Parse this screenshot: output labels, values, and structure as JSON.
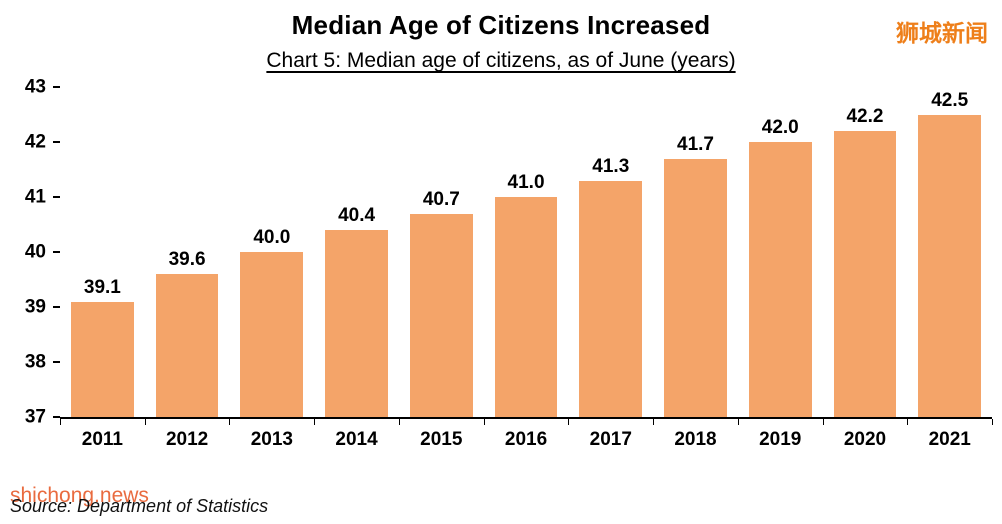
{
  "header": {
    "title": "Median Age of Citizens Increased",
    "subtitle": "Chart 5: Median age of citizens, as of June (years)"
  },
  "watermarks": {
    "top_right": "狮城新闻",
    "bottom_left": "shichong.news"
  },
  "footer": {
    "source": "Source: Department of Statistics"
  },
  "chart_data": {
    "type": "bar",
    "title": "Median Age of Citizens Increased",
    "subtitle": "Chart 5: Median age of citizens, as of June (years)",
    "categories": [
      "2011",
      "2012",
      "2013",
      "2014",
      "2015",
      "2016",
      "2017",
      "2018",
      "2019",
      "2020",
      "2021"
    ],
    "values": [
      39.1,
      39.6,
      40.0,
      40.4,
      40.7,
      41.0,
      41.3,
      41.7,
      42.0,
      42.2,
      42.5
    ],
    "value_label_decimals": 1,
    "xlabel": "",
    "ylabel": "",
    "ylim": [
      37,
      43
    ],
    "yticks": [
      37,
      38,
      39,
      40,
      41,
      42,
      43
    ],
    "grid": false,
    "legend": false,
    "bar_color": "#f4a469",
    "axis_color": "#000000"
  }
}
